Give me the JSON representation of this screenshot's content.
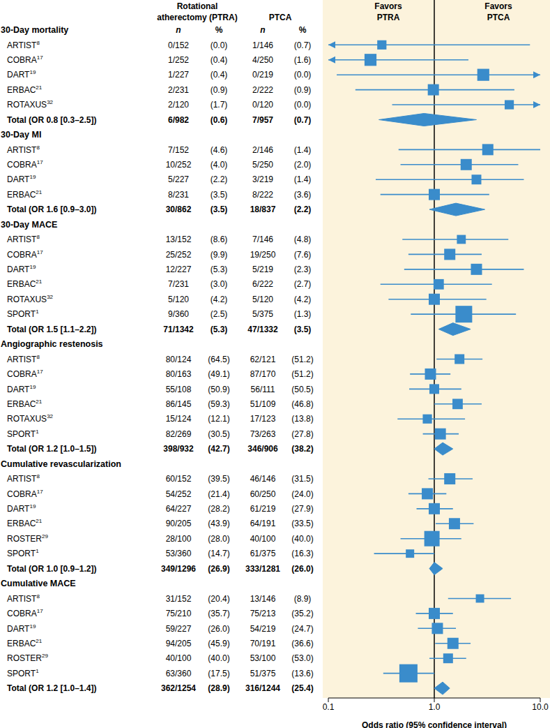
{
  "chart_data": {
    "type": "forest",
    "x_label": "Odds ratio (95% confidence interval)",
    "xlim": [
      0.1,
      10
    ],
    "xticks": [
      0.1,
      {
        "value": 1,
        "label": "1.0"
      },
      {
        "value": 10,
        "label": "10.0"
      }
    ],
    "log": "x",
    "reference_line": 1,
    "color": "#3a8ccb",
    "favors": [
      [
        "Favors",
        "PTRA"
      ],
      [
        "Favors",
        "PTCA"
      ]
    ],
    "columns": {
      "group1": [
        "Rotational",
        "atherectomy (PTRA)"
      ],
      "group2": [
        "PTCA"
      ],
      "n": "n",
      "pct": "%"
    },
    "sections": [
      {
        "title": "30-Day mortality",
        "studies": [
          {
            "study": "ARTIST",
            "ref": "8",
            "ptra_n": "0/152",
            "ptra_pct": "(0.0)",
            "ptca_n": "1/146",
            "ptca_pct": "(0.7)",
            "or": 0.32,
            "lo": 0.01,
            "hi": 8.0,
            "weight": 18
          },
          {
            "study": "COBRA",
            "ref": "17",
            "ptra_n": "1/252",
            "ptra_pct": "(0.4)",
            "ptca_n": "4/250",
            "ptca_pct": "(1.6)",
            "or": 0.25,
            "lo": 0.01,
            "hi": 2.1,
            "weight": 28
          },
          {
            "study": "DART",
            "ref": "19",
            "ptra_n": "1/227",
            "ptra_pct": "(0.4)",
            "ptca_n": "0/219",
            "ptca_pct": "(0.0)",
            "or": 2.9,
            "lo": 0.12,
            "hi": 80,
            "weight": 28
          },
          {
            "study": "ERBAC",
            "ref": "21",
            "ptra_n": "2/231",
            "ptra_pct": "(0.9)",
            "ptca_n": "2/222",
            "ptca_pct": "(0.9)",
            "or": 0.98,
            "lo": 0.18,
            "hi": 5.7,
            "weight": 25
          },
          {
            "study": "ROTAXUS",
            "ref": "32",
            "ptra_n": "2/120",
            "ptra_pct": "(1.7)",
            "ptca_n": "0/120",
            "ptca_pct": "(0.0)",
            "or": 5.1,
            "lo": 0.4,
            "hi": 100,
            "weight": 18
          }
        ],
        "total": {
          "label": "Total (OR 0.8 [0.3–2.5])",
          "ptra_n": "6/982",
          "ptra_pct": "(0.6)",
          "ptca_n": "7/957",
          "ptca_pct": "(0.7)",
          "or": 0.8,
          "lo": 0.3,
          "hi": 2.5
        }
      },
      {
        "title": "30-Day MI",
        "studies": [
          {
            "study": "ARTIST",
            "ref": "8",
            "ptra_n": "7/152",
            "ptra_pct": "(4.6)",
            "ptca_n": "2/146",
            "ptca_pct": "(1.4)",
            "or": 3.2,
            "lo": 0.46,
            "hi": 10.0,
            "weight": 25
          },
          {
            "study": "COBRA",
            "ref": "17",
            "ptra_n": "10/252",
            "ptra_pct": "(4.0)",
            "ptca_n": "5/250",
            "ptca_pct": "(2.0)",
            "or": 2.0,
            "lo": 0.48,
            "hi": 6.2,
            "weight": 25
          },
          {
            "study": "DART",
            "ref": "19",
            "ptra_n": "5/227",
            "ptra_pct": "(2.2)",
            "ptca_n": "3/219",
            "ptca_pct": "(1.4)",
            "or": 2.5,
            "lo": 0.28,
            "hi": 7.0,
            "weight": 20
          },
          {
            "study": "ERBAC",
            "ref": "21",
            "ptra_n": "8/231",
            "ptra_pct": "(3.5)",
            "ptca_n": "8/222",
            "ptca_pct": "(3.6)",
            "or": 1.0,
            "lo": 0.31,
            "hi": 3.3,
            "weight": 25
          }
        ],
        "total": {
          "label": "Total (OR 1.6 [0.9–3.0])",
          "ptra_n": "30/862",
          "ptra_pct": "(3.5)",
          "ptca_n": "18/837",
          "ptca_pct": "(2.2)",
          "or": 1.6,
          "lo": 0.9,
          "hi": 3.0
        }
      },
      {
        "title": "30-Day MACE",
        "studies": [
          {
            "study": "ARTIST",
            "ref": "8",
            "ptra_n": "13/152",
            "ptra_pct": "(8.6)",
            "ptca_n": "7/146",
            "ptca_pct": "(4.8)",
            "or": 1.8,
            "lo": 0.5,
            "hi": 5.0,
            "weight": 17
          },
          {
            "study": "COBRA",
            "ref": "17",
            "ptra_n": "25/252",
            "ptra_pct": "(9.9)",
            "ptca_n": "19/250",
            "ptca_pct": "(7.6)",
            "or": 1.4,
            "lo": 0.57,
            "hi": 2.8,
            "weight": 25
          },
          {
            "study": "DART",
            "ref": "19",
            "ptra_n": "12/227",
            "ptra_pct": "(5.3)",
            "ptca_n": "5/219",
            "ptca_pct": "(2.3)",
            "or": 2.5,
            "lo": 0.52,
            "hi": 7.0,
            "weight": 25
          },
          {
            "study": "ERBAC",
            "ref": "21",
            "ptra_n": "7/231",
            "ptra_pct": "(3.0)",
            "ptca_n": "6/222",
            "ptca_pct": "(2.7)",
            "or": 1.1,
            "lo": 0.31,
            "hi": 3.5,
            "weight": 22
          },
          {
            "study": "ROTAXUS",
            "ref": "32",
            "ptra_n": "5/120",
            "ptra_pct": "(4.2)",
            "ptca_n": "5/120",
            "ptca_pct": "(4.2)",
            "or": 1.0,
            "lo": 0.37,
            "hi": 3.1,
            "weight": 25
          },
          {
            "study": "SPORT",
            "ref": "1",
            "ptra_n": "9/360",
            "ptra_pct": "(2.5)",
            "ptca_n": "5/375",
            "ptca_pct": "(1.3)",
            "or": 1.9,
            "lo": 0.6,
            "hi": 5.9,
            "weight": 45
          }
        ],
        "total": {
          "label": "Total (OR 1.5 [1.1–2.2])",
          "ptra_n": "71/1342",
          "ptra_pct": "(5.3)",
          "ptca_n": "47/1332",
          "ptca_pct": "(3.5)",
          "or": 1.5,
          "lo": 1.1,
          "hi": 2.2
        }
      },
      {
        "title": "Angiographic restenosis",
        "studies": [
          {
            "study": "ARTIST",
            "ref": "8",
            "ptra_n": "80/124",
            "ptra_pct": "(64.5)",
            "ptca_n": "62/121",
            "ptca_pct": "(51.2)",
            "or": 1.73,
            "lo": 1.05,
            "hi": 2.85,
            "weight": 20
          },
          {
            "study": "COBRA",
            "ref": "17",
            "ptra_n": "80/163",
            "ptra_pct": "(49.1)",
            "ptca_n": "87/170",
            "ptca_pct": "(51.2)",
            "or": 0.92,
            "lo": 0.59,
            "hi": 1.42,
            "weight": 25
          },
          {
            "study": "DART",
            "ref": "19",
            "ptra_n": "55/108",
            "ptra_pct": "(50.9)",
            "ptca_n": "56/111",
            "ptca_pct": "(50.5)",
            "or": 1.0,
            "lo": 0.58,
            "hi": 1.8,
            "weight": 20
          },
          {
            "study": "ERBAC",
            "ref": "21",
            "ptra_n": "86/145",
            "ptra_pct": "(59.3)",
            "ptca_n": "51/109",
            "ptca_pct": "(46.8)",
            "or": 1.66,
            "lo": 1.0,
            "hi": 2.8,
            "weight": 22
          },
          {
            "study": "ROTAXUS",
            "ref": "32",
            "ptra_n": "15/124",
            "ptra_pct": "(12.1)",
            "ptca_n": "17/123",
            "ptca_pct": "(13.8)",
            "or": 0.86,
            "lo": 0.45,
            "hi": 1.95,
            "weight": 18
          },
          {
            "study": "SPORT",
            "ref": "1",
            "ptra_n": "82/269",
            "ptra_pct": "(30.5)",
            "ptca_n": "73/263",
            "ptca_pct": "(27.8)",
            "or": 1.14,
            "lo": 0.78,
            "hi": 1.7,
            "weight": 25
          }
        ],
        "total": {
          "label": "Total (OR 1.2 [1.0–1.5])",
          "ptra_n": "398/932",
          "ptra_pct": "(42.7)",
          "ptca_n": "346/906",
          "ptca_pct": "(38.2)",
          "or": 1.2,
          "lo": 1.0,
          "hi": 1.5
        }
      },
      {
        "title": "Cumulative revascularization",
        "studies": [
          {
            "study": "ARTIST",
            "ref": "8",
            "ptra_n": "60/152",
            "ptra_pct": "(39.5)",
            "ptca_n": "46/146",
            "ptca_pct": "(31.5)",
            "or": 1.4,
            "lo": 0.88,
            "hi": 2.3,
            "weight": 25
          },
          {
            "study": "COBRA",
            "ref": "17",
            "ptra_n": "54/252",
            "ptra_pct": "(21.4)",
            "ptca_n": "60/250",
            "ptca_pct": "(24.0)",
            "or": 0.86,
            "lo": 0.57,
            "hi": 1.3,
            "weight": 25
          },
          {
            "study": "DART",
            "ref": "19",
            "ptra_n": "64/227",
            "ptra_pct": "(28.2)",
            "ptca_n": "61/219",
            "ptca_pct": "(27.9)",
            "or": 1.0,
            "lo": 0.68,
            "hi": 1.5,
            "weight": 25
          },
          {
            "study": "ERBAC",
            "ref": "21",
            "ptra_n": "90/205",
            "ptra_pct": "(43.9)",
            "ptca_n": "64/191",
            "ptca_pct": "(33.5)",
            "or": 1.55,
            "lo": 1.03,
            "hi": 2.35,
            "weight": 25
          },
          {
            "study": "ROSTER",
            "ref": "29",
            "ptra_n": "28/100",
            "ptra_pct": "(28.0)",
            "ptca_n": "40/100",
            "ptca_pct": "(40.0)",
            "or": 0.95,
            "lo": 0.48,
            "hi": 1.8,
            "weight": 40
          },
          {
            "study": "SPORT",
            "ref": "1",
            "ptra_n": "53/360",
            "ptra_pct": "(14.7)",
            "ptca_n": "61/375",
            "ptca_pct": "(16.3)",
            "or": 0.59,
            "lo": 0.27,
            "hi": 1.0,
            "weight": 15
          }
        ],
        "total": {
          "label": "Total (OR 1.0 [0.9–1.2])",
          "ptra_n": "349/1296",
          "ptra_pct": "(26.9)",
          "ptca_n": "333/1281",
          "ptca_pct": "(26.0)",
          "or": 1.0,
          "lo": 0.9,
          "hi": 1.2
        }
      },
      {
        "title": "Cumulative MACE",
        "studies": [
          {
            "study": "ARTIST",
            "ref": "8",
            "ptra_n": "31/152",
            "ptra_pct": "(20.4)",
            "ptca_n": "13/146",
            "ptca_pct": "(8.9)",
            "or": 2.7,
            "lo": 1.35,
            "hi": 5.3,
            "weight": 15
          },
          {
            "study": "COBRA",
            "ref": "17",
            "ptra_n": "75/210",
            "ptra_pct": "(35.7)",
            "ptca_n": "75/213",
            "ptca_pct": "(35.2)",
            "or": 1.0,
            "lo": 0.67,
            "hi": 1.5,
            "weight": 25
          },
          {
            "study": "DART",
            "ref": "19",
            "ptra_n": "59/227",
            "ptra_pct": "(26.0)",
            "ptca_n": "54/219",
            "ptca_pct": "(24.7)",
            "or": 1.07,
            "lo": 0.7,
            "hi": 1.6,
            "weight": 25
          },
          {
            "study": "ERBAC",
            "ref": "21",
            "ptra_n": "94/205",
            "ptra_pct": "(45.9)",
            "ptca_n": "70/191",
            "ptca_pct": "(36.6)",
            "or": 1.5,
            "lo": 1.02,
            "hi": 2.2,
            "weight": 25
          },
          {
            "study": "ROSTER",
            "ref": "29",
            "ptra_n": "40/100",
            "ptra_pct": "(40.0)",
            "ptca_n": "53/100",
            "ptca_pct": "(53.0)",
            "or": 1.35,
            "lo": 0.9,
            "hi": 2.0,
            "weight": 20
          },
          {
            "study": "SPORT",
            "ref": "1",
            "ptra_n": "63/360",
            "ptra_pct": "(17.5)",
            "ptca_n": "51/375",
            "ptca_pct": "(13.6)",
            "or": 0.57,
            "lo": 0.33,
            "hi": 1.0,
            "weight": 50
          }
        ],
        "total": {
          "label": "Total (OR 1.2 [1.0–1.4])",
          "ptra_n": "362/1254",
          "ptra_pct": "(28.9)",
          "ptca_n": "316/1244",
          "ptca_pct": "(25.4)",
          "or": 1.2,
          "lo": 1.0,
          "hi": 1.4
        }
      }
    ]
  }
}
